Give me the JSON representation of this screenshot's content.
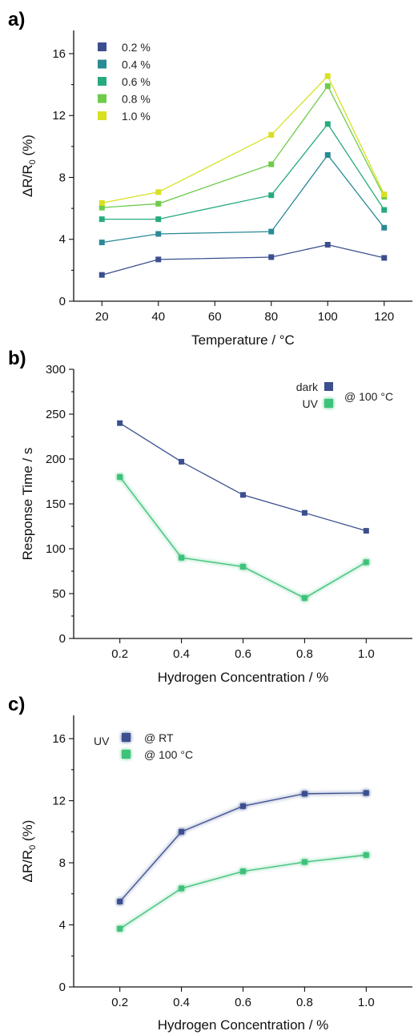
{
  "chart_data": [
    {
      "panel": "a)",
      "type": "line",
      "xlabel": "Temperature / °C",
      "ylabel": "ΔR/R",
      "ylabel_sub": "0",
      "ylabel_suffix": " (%)",
      "x": [
        20,
        40,
        80,
        100,
        120
      ],
      "x_ticks": [
        20,
        40,
        60,
        80,
        100,
        120
      ],
      "xlim": [
        10,
        130
      ],
      "y_ticks": [
        0,
        4,
        8,
        12,
        16
      ],
      "ylim": [
        0,
        17.5
      ],
      "grid": false,
      "legend_position": "top-left",
      "series": [
        {
          "name": "0.2 %",
          "color": "#3b4f8f",
          "values": [
            1.7,
            2.7,
            2.85,
            3.65,
            2.8
          ]
        },
        {
          "name": "0.4 %",
          "color": "#2a8a96",
          "values": [
            3.8,
            4.35,
            4.5,
            9.45,
            4.75
          ]
        },
        {
          "name": "0.6 %",
          "color": "#26aa7e",
          "values": [
            5.3,
            5.3,
            6.85,
            11.45,
            5.9
          ]
        },
        {
          "name": "0.8 %",
          "color": "#6ecb4a",
          "values": [
            6.05,
            6.3,
            8.85,
            13.9,
            6.75
          ]
        },
        {
          "name": "1.0 %",
          "color": "#d8e021",
          "values": [
            6.35,
            7.05,
            10.75,
            14.55,
            6.9
          ]
        }
      ]
    },
    {
      "panel": "b)",
      "type": "line",
      "xlabel": "Hydrogen Concentration / %",
      "ylabel": "Response Time / s",
      "x": [
        0.2,
        0.4,
        0.6,
        0.8,
        1.0
      ],
      "x_ticks": [
        "0.2",
        "0.4",
        "0.6",
        "0.8",
        "1.0"
      ],
      "xlim": [
        0.05,
        1.15
      ],
      "y_ticks": [
        0,
        50,
        100,
        150,
        200,
        250,
        300
      ],
      "ylim": [
        0,
        300
      ],
      "grid": false,
      "legend_position": "top-right",
      "legend_note": "@ 100 °C",
      "series": [
        {
          "name": "dark",
          "color": "#3b4f8f",
          "glow": false,
          "values": [
            240,
            197,
            160,
            140,
            120
          ]
        },
        {
          "name": "UV",
          "color": "#3cc27a",
          "glow": true,
          "values": [
            180,
            90,
            80,
            45,
            85
          ]
        }
      ]
    },
    {
      "panel": "c)",
      "type": "line",
      "xlabel": "Hydrogen Concentration / %",
      "ylabel": "ΔR/R",
      "ylabel_sub": "0",
      "ylabel_suffix": " (%)",
      "x": [
        0.2,
        0.4,
        0.6,
        0.8,
        1.0
      ],
      "x_ticks": [
        "0.2",
        "0.4",
        "0.6",
        "0.8",
        "1.0"
      ],
      "xlim": [
        0.05,
        1.15
      ],
      "y_ticks": [
        0,
        4,
        8,
        12,
        16
      ],
      "ylim": [
        0,
        17.5
      ],
      "grid": false,
      "legend_position": "top-left",
      "legend_title": "UV",
      "series": [
        {
          "name": "@ RT",
          "color": "#3b4f8f",
          "glow": true,
          "values": [
            5.5,
            10.0,
            11.65,
            12.45,
            12.5
          ]
        },
        {
          "name": "@ 100 °C",
          "color": "#3cc27a",
          "glow": true,
          "values": [
            3.75,
            6.35,
            7.45,
            8.05,
            8.5
          ]
        }
      ]
    }
  ]
}
